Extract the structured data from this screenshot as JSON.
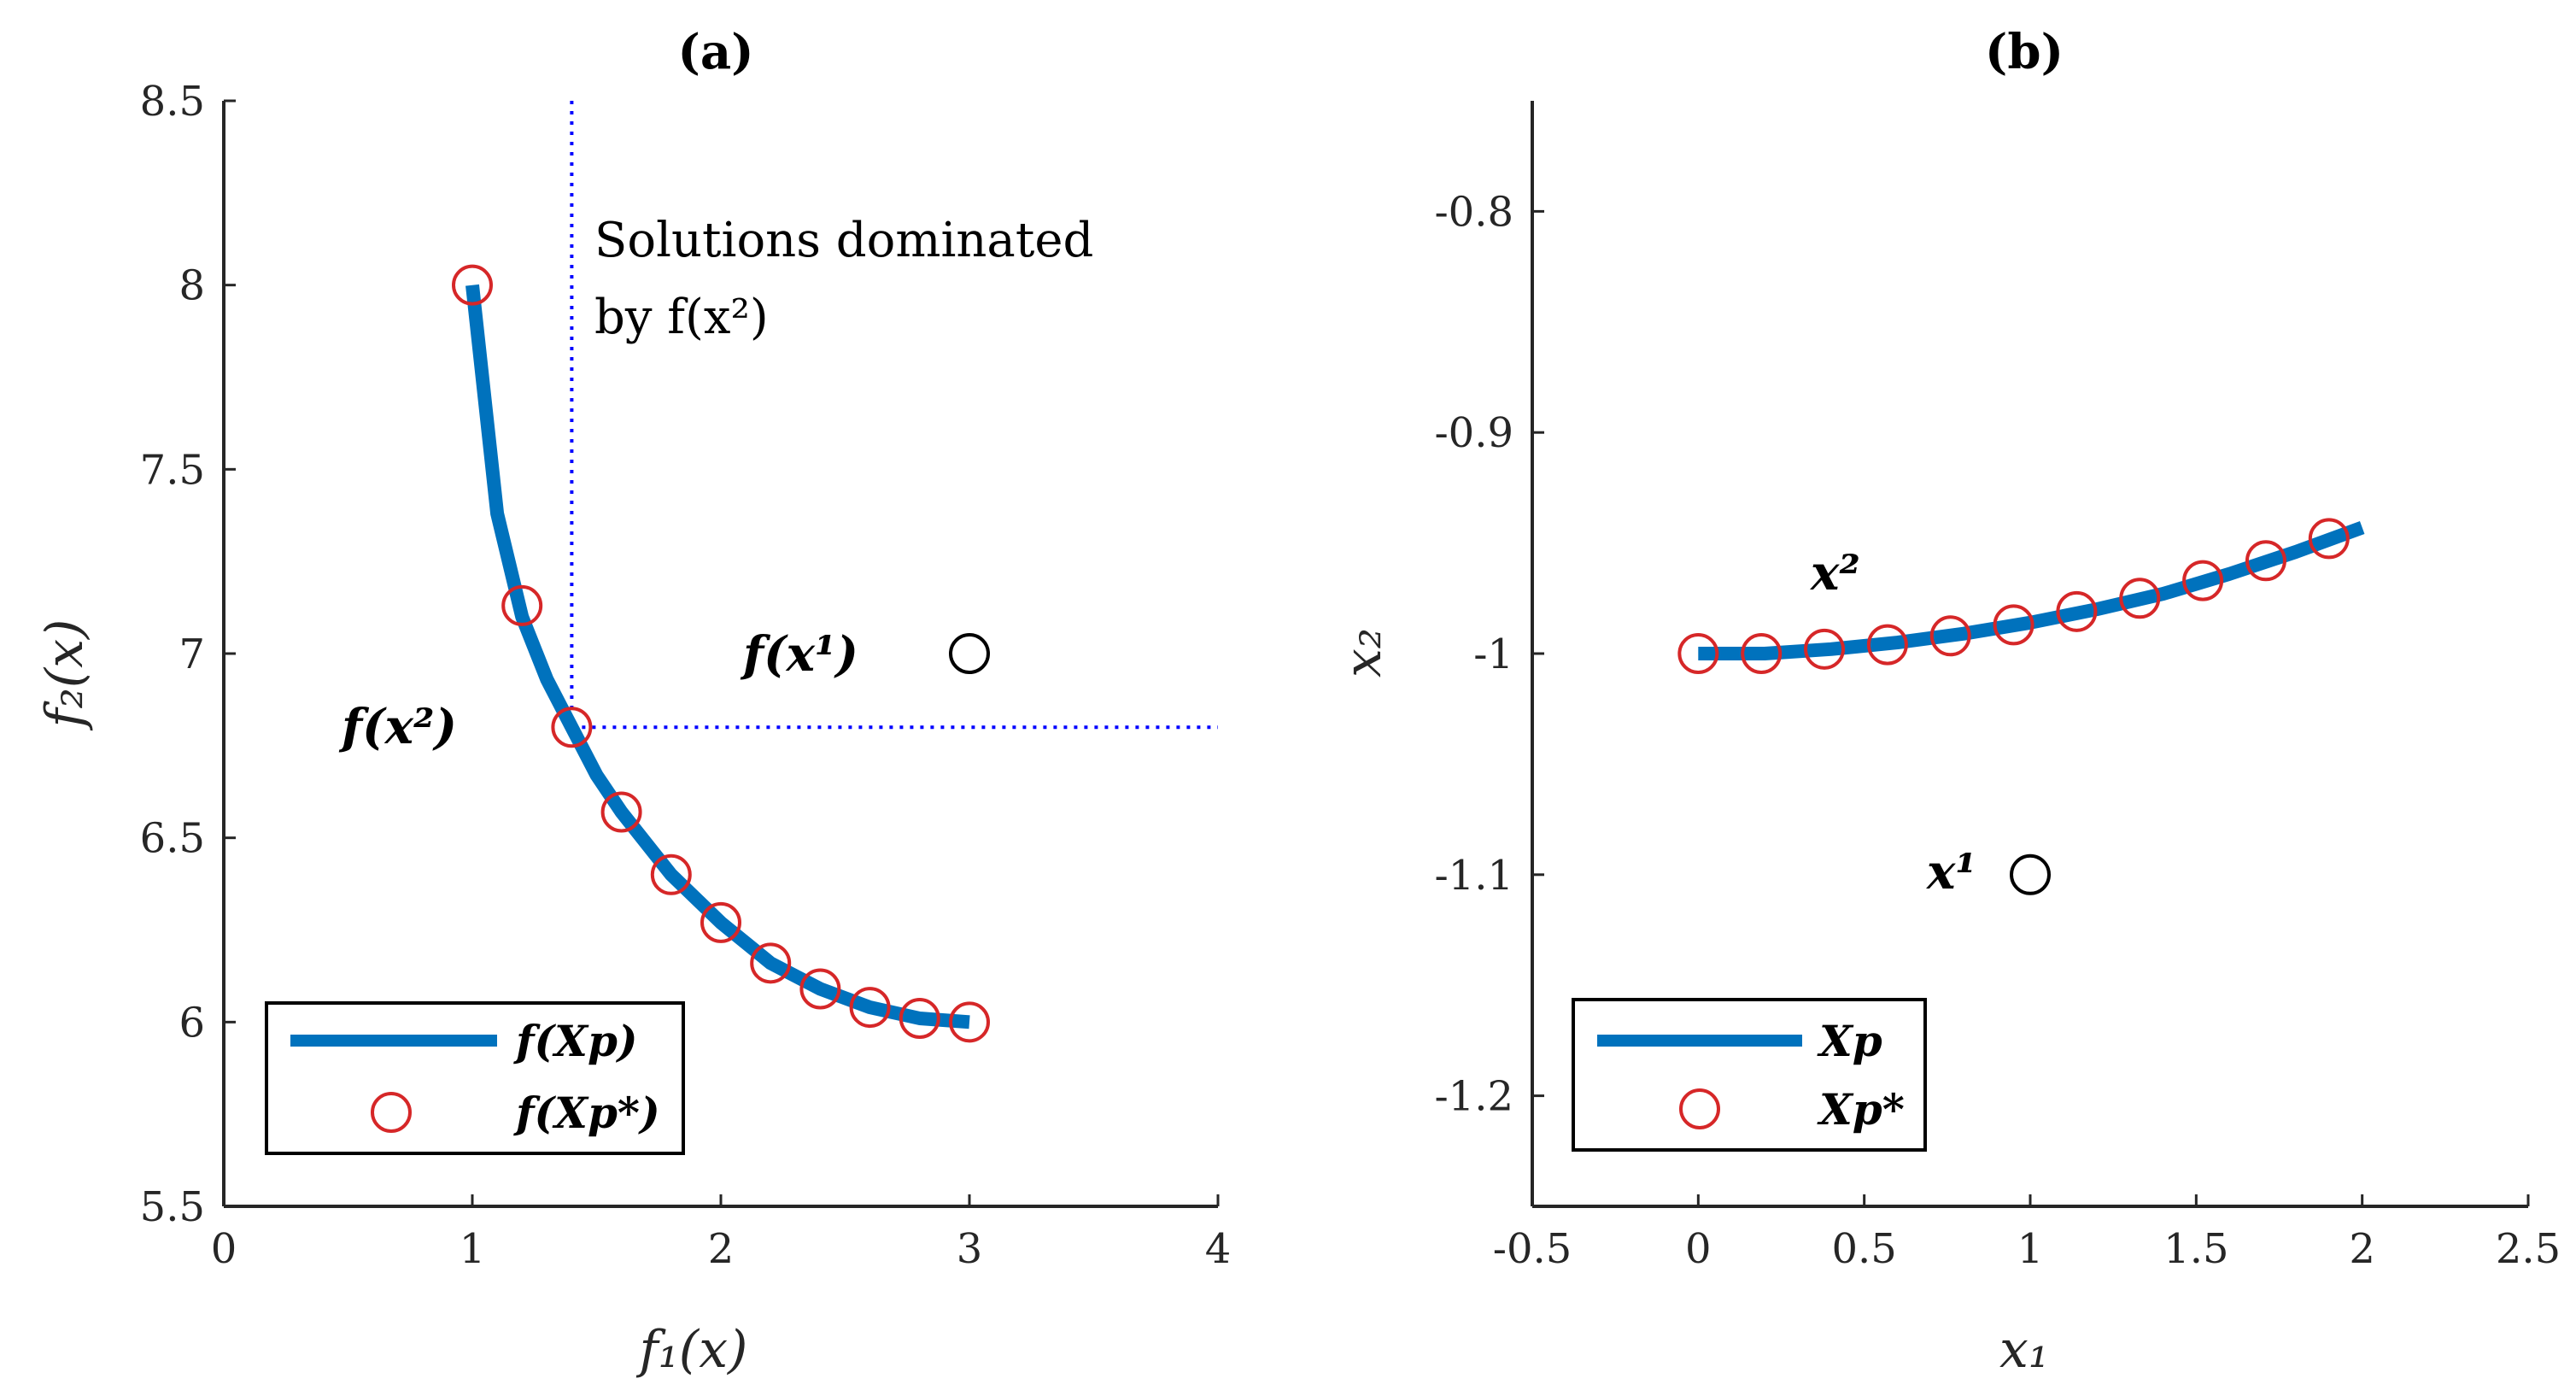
{
  "colors": {
    "curve": "#0072BD",
    "pareto_marker": "#D62728",
    "point_marker": "#000000",
    "dominance_line": "#0000FF",
    "axis": "#262626"
  },
  "chart_data": [
    {
      "id": "a",
      "type": "line",
      "title": "(a)",
      "xlabel": "f₁(x)",
      "ylabel": "f₂(x)",
      "xlim": [
        0,
        4
      ],
      "ylim": [
        5.5,
        8.5
      ],
      "xticks": [
        0,
        1,
        2,
        3,
        4
      ],
      "xtick_labels": [
        "0",
        "1",
        "2",
        "3",
        "4"
      ],
      "yticks": [
        5.5,
        6,
        6.5,
        7,
        7.5,
        8,
        8.5
      ],
      "ytick_labels": [
        "5.5",
        "6",
        "6.5",
        "7",
        "7.5",
        "8",
        "8.5"
      ],
      "grid": false,
      "legend_position": "bottom-left",
      "series": [
        {
          "name": "f(Xp)",
          "kind": "line",
          "x": [
            1.0,
            1.1,
            1.2,
            1.3,
            1.4,
            1.5,
            1.6,
            1.8,
            2.0,
            2.2,
            2.4,
            2.6,
            2.8,
            3.0
          ],
          "y": [
            8.0,
            7.38,
            7.1,
            6.93,
            6.8,
            6.67,
            6.57,
            6.4,
            6.27,
            6.16,
            6.09,
            6.04,
            6.01,
            6.0
          ]
        },
        {
          "name": "f(Xp*)",
          "kind": "scatter",
          "x": [
            1.0,
            1.2,
            1.4,
            1.6,
            1.8,
            2.0,
            2.2,
            2.4,
            2.6,
            2.8,
            3.0
          ],
          "y": [
            8.0,
            7.13,
            6.8,
            6.57,
            6.4,
            6.27,
            6.16,
            6.09,
            6.04,
            6.01,
            6.0
          ]
        },
        {
          "name": "f(x1)",
          "kind": "point",
          "x": [
            3.0
          ],
          "y": [
            7.0
          ]
        }
      ],
      "dominance_corner": {
        "x": 1.4,
        "y": 6.8
      },
      "annotations": {
        "dominated_line1": "Solutions dominated",
        "dominated_line2": "by f(x²)",
        "fx1_label": "f(x¹)",
        "fx2_label": "f(x²)"
      },
      "legend": [
        "f(Xp)",
        "f(Xp*)"
      ]
    },
    {
      "id": "b",
      "type": "line",
      "title": "(b)",
      "xlabel": "x₁",
      "ylabel": "x₂",
      "xlim": [
        -0.5,
        2.5
      ],
      "ylim": [
        -1.25,
        -0.75
      ],
      "xticks": [
        -0.5,
        0,
        0.5,
        1,
        1.5,
        2,
        2.5
      ],
      "xtick_labels": [
        "-0.5",
        "0",
        "0.5",
        "1",
        "1.5",
        "2",
        "2.5"
      ],
      "yticks": [
        -1.2,
        -1.1,
        -1,
        -0.9,
        -0.8
      ],
      "ytick_labels": [
        "-1.2",
        "-1.1",
        "-1",
        "-0.9",
        "-0.8"
      ],
      "grid": false,
      "legend_position": "bottom-left",
      "series": [
        {
          "name": "Xp",
          "kind": "line",
          "x": [
            0.0,
            0.2,
            0.4,
            0.6,
            0.8,
            1.0,
            1.2,
            1.4,
            1.6,
            1.8,
            2.0
          ],
          "y": [
            -1.0,
            -1.0,
            -0.998,
            -0.995,
            -0.991,
            -0.986,
            -0.98,
            -0.973,
            -0.964,
            -0.954,
            -0.943
          ]
        },
        {
          "name": "Xp*",
          "kind": "scatter",
          "x": [
            0.0,
            0.19,
            0.38,
            0.57,
            0.76,
            0.95,
            1.14,
            1.33,
            1.52,
            1.71,
            1.9
          ],
          "y": [
            -1.0,
            -1.0,
            -0.998,
            -0.996,
            -0.992,
            -0.987,
            -0.981,
            -0.975,
            -0.967,
            -0.958,
            -0.948
          ]
        },
        {
          "name": "x1",
          "kind": "point",
          "x": [
            1.0
          ],
          "y": [
            -1.1
          ]
        }
      ],
      "annotations": {
        "x1_label": "x¹",
        "x2_label": "x²"
      },
      "legend": [
        "Xp",
        "Xp*"
      ]
    }
  ]
}
